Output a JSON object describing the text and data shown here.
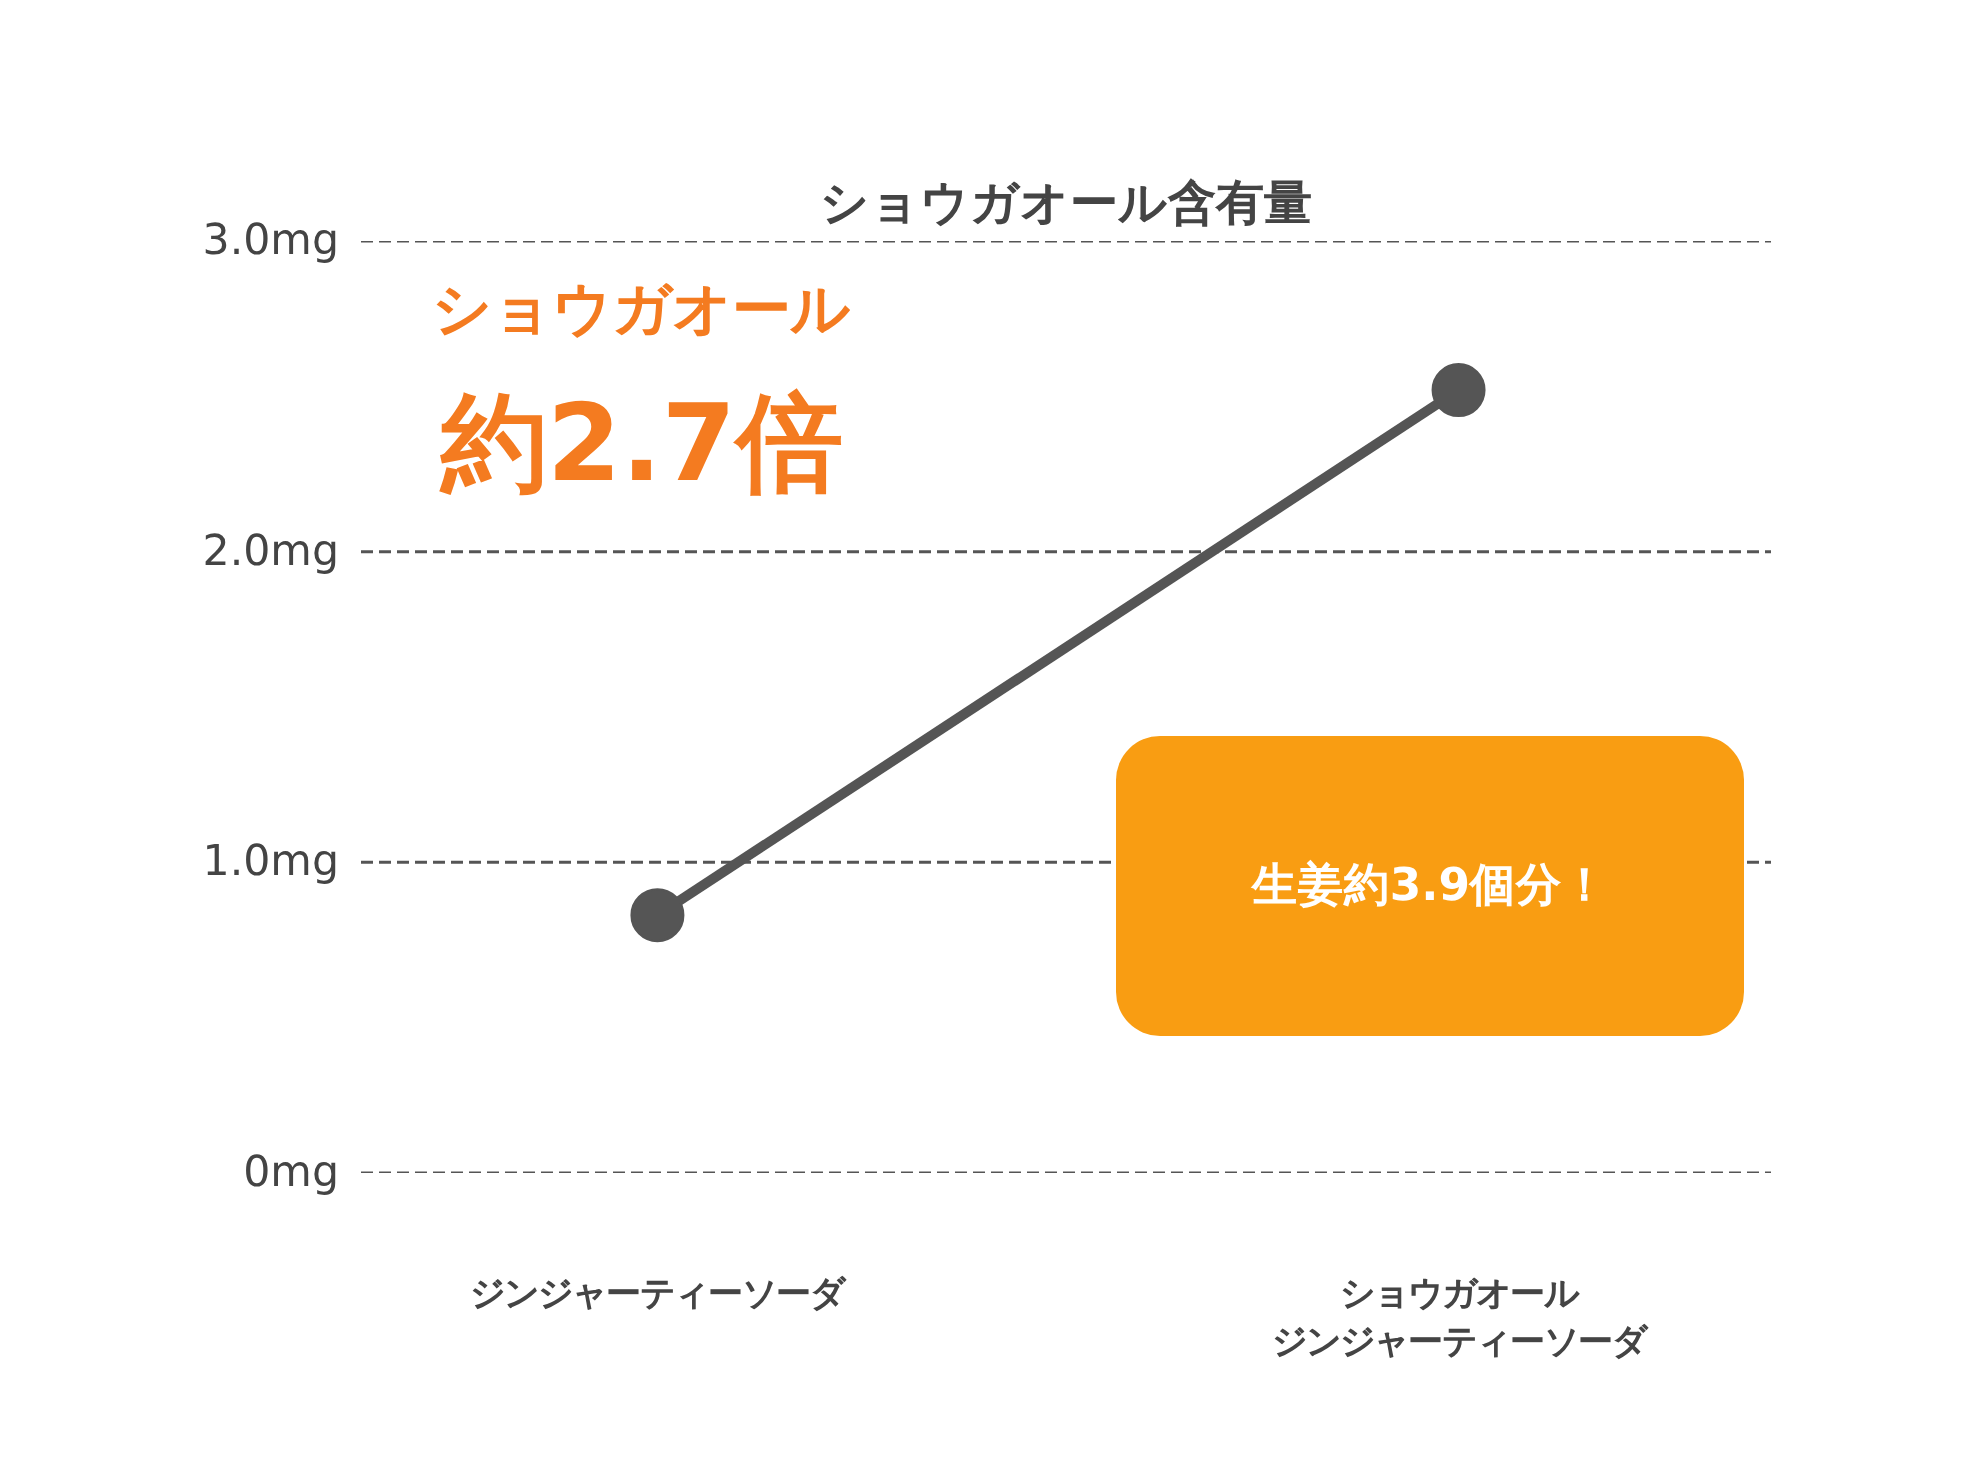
{
  "chart_data": {
    "type": "line",
    "title": "ショウガオール含有量",
    "categories": [
      "ジンジャーティーソーダ",
      "ショウガオールジンジャーティーソーダ"
    ],
    "series": [
      {
        "color": "#555555",
        "values": [
          0.83,
          2.52
        ]
      }
    ],
    "ylim": [
      0,
      3
    ],
    "yticks": [
      {
        "value": 0,
        "label": "0mg"
      },
      {
        "value": 1,
        "label": "1.0mg"
      },
      {
        "value": 2,
        "label": "2.0mg"
      },
      {
        "value": 3,
        "label": "3.0mg"
      }
    ],
    "grid": "y",
    "marker": "circle",
    "line_style": "solid",
    "annotations": [
      "ショウガオール",
      "約2.7倍",
      "生姜約3.9個分！"
    ]
  }
}
